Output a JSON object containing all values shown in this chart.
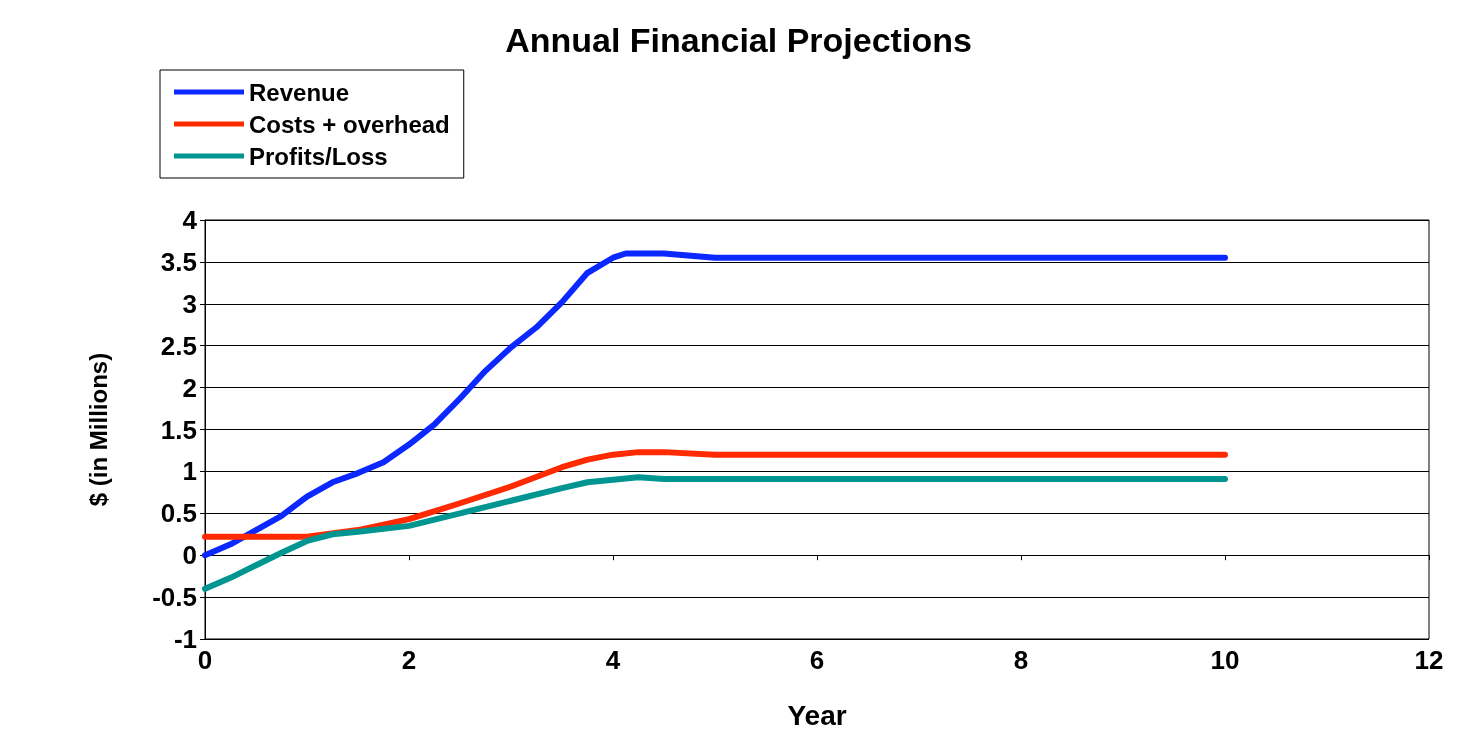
{
  "chart_data": {
    "type": "line",
    "title": "Annual Financial Projections",
    "xlabel": "Year",
    "ylabel": "$ (in Millions)",
    "xlim": [
      0,
      12
    ],
    "xticks": [
      0,
      2,
      4,
      6,
      8,
      10,
      12
    ],
    "ylim": [
      -1,
      4
    ],
    "yticks": [
      -1,
      -0.5,
      0,
      0.5,
      1,
      1.5,
      2,
      2.5,
      3,
      3.5,
      4
    ],
    "grid": "y",
    "legend": "top left",
    "marker": "none",
    "line_style": "solid",
    "series": [
      {
        "name": "Revenue",
        "color": "#0a28ff",
        "x": [
          0,
          0.25,
          0.5,
          0.75,
          1,
          1.25,
          1.5,
          1.75,
          2,
          2.25,
          2.5,
          2.75,
          3,
          3.25,
          3.5,
          3.75,
          4,
          4.125,
          4.5,
          5,
          6,
          7,
          8,
          9,
          10
        ],
        "values": [
          0,
          0.13,
          0.3,
          0.47,
          0.7,
          0.87,
          0.98,
          1.11,
          1.32,
          1.56,
          1.87,
          2.2,
          2.48,
          2.72,
          3.02,
          3.37,
          3.55,
          3.6,
          3.6,
          3.55,
          3.55,
          3.55,
          3.55,
          3.55,
          3.55
        ]
      },
      {
        "name": "Costs + overhead",
        "color": "#ff2a00",
        "x": [
          0,
          0.5,
          1,
          1.5,
          2,
          2.5,
          3,
          3.5,
          3.75,
          4,
          4.25,
          4.5,
          5,
          6,
          7,
          8,
          9,
          10
        ],
        "values": [
          0.22,
          0.22,
          0.22,
          0.3,
          0.43,
          0.62,
          0.82,
          1.05,
          1.14,
          1.2,
          1.23,
          1.23,
          1.2,
          1.2,
          1.2,
          1.2,
          1.2,
          1.2
        ]
      },
      {
        "name": "Profits/Loss",
        "color": "#009590",
        "x": [
          0,
          0.25,
          0.5,
          0.75,
          1,
          1.25,
          1.5,
          2,
          2.5,
          3,
          3.5,
          3.75,
          4,
          4.25,
          4.5,
          5,
          6,
          7,
          8,
          9,
          10
        ],
        "values": [
          -0.4,
          -0.27,
          -0.12,
          0.03,
          0.17,
          0.25,
          0.28,
          0.35,
          0.5,
          0.65,
          0.8,
          0.87,
          0.9,
          0.93,
          0.91,
          0.91,
          0.91,
          0.91,
          0.91,
          0.91,
          0.91
        ]
      }
    ]
  }
}
